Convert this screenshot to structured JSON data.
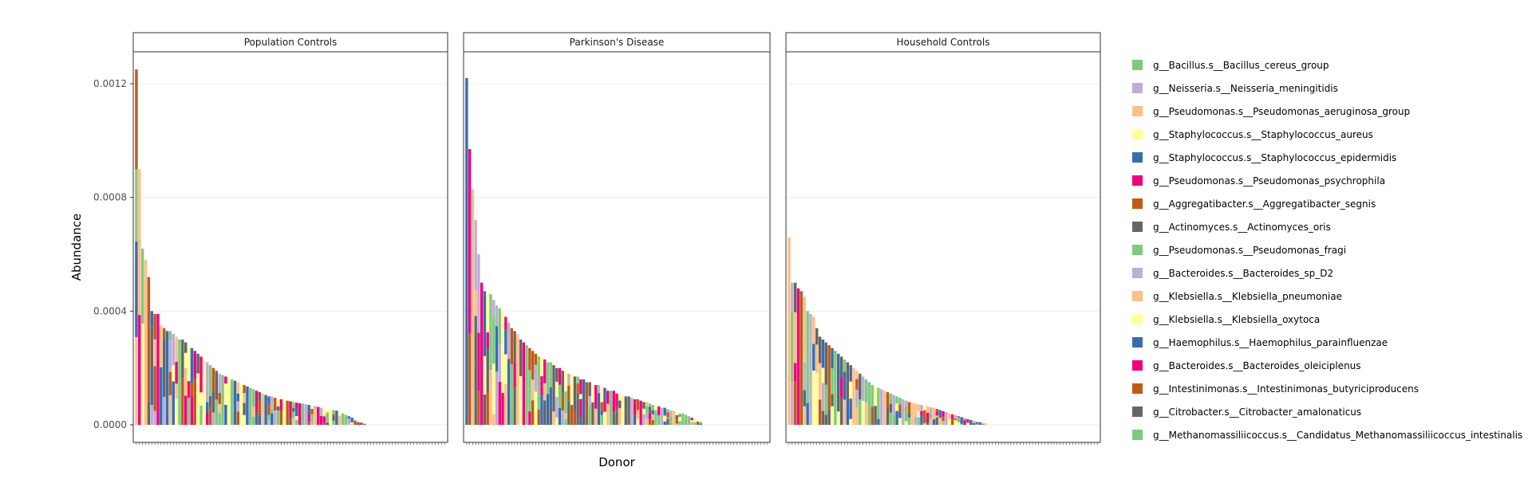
{
  "chart_data": {
    "type": "bar",
    "stacked": true,
    "xlabel": "Donor",
    "ylabel": "Abundance",
    "ylim": [
      0,
      0.0013
    ],
    "yticks": [
      {
        "value": 0,
        "label": "0.0000"
      },
      {
        "value": 0.0004,
        "label": "0.0004"
      },
      {
        "value": 0.0008,
        "label": "0.0008"
      },
      {
        "value": 0.0012,
        "label": "0.0012"
      }
    ],
    "grid": true,
    "legend_position": "right",
    "series": [
      {
        "name": "g__Bacillus.s__Bacillus_cereus_group",
        "color": "#7FC97F"
      },
      {
        "name": "g__Neisseria.s__Neisseria_meningitidis",
        "color": "#BEAED4"
      },
      {
        "name": "g__Pseudomonas.s__Pseudomonas_aeruginosa_group",
        "color": "#FDC086"
      },
      {
        "name": "g__Staphylococcus.s__Staphylococcus_aureus",
        "color": "#FFFF99"
      },
      {
        "name": "g__Staphylococcus.s__Staphylococcus_epidermidis",
        "color": "#386CB0"
      },
      {
        "name": "g__Pseudomonas.s__Pseudomonas_psychrophila",
        "color": "#F0027F"
      },
      {
        "name": "g__Aggregatibacter.s__Aggregatibacter_segnis",
        "color": "#BF5B17"
      },
      {
        "name": "g__Actinomyces.s__Actinomyces_oris",
        "color": "#666666"
      },
      {
        "name": "g__Pseudomonas.s__Pseudomonas_fragi",
        "color": "#7FC97F"
      },
      {
        "name": "g__Bacteroides.s__Bacteroides_sp_D2",
        "color": "#BEAED4"
      },
      {
        "name": "g__Klebsiella.s__Klebsiella_pneumoniae",
        "color": "#FDC086"
      },
      {
        "name": "g__Klebsiella.s__Klebsiella_oxytoca",
        "color": "#FFFF99"
      },
      {
        "name": "g__Haemophilus.s__Haemophilus_parainfluenzae",
        "color": "#386CB0"
      },
      {
        "name": "g__Bacteroides.s__Bacteroides_oleiciplenus",
        "color": "#F0027F"
      },
      {
        "name": "g__Intestinimonas.s__Intestinimonas_butyriciproducens",
        "color": "#BF5B17"
      },
      {
        "name": "g__Citrobacter.s__Citrobacter_amalonaticus",
        "color": "#666666"
      },
      {
        "name": "g__Methanomassiliicoccus.s__Candidatus_Methanomassiliicoccus_intestinalis",
        "color": "#7FC97F"
      }
    ],
    "panels": [
      {
        "title": "Population Controls",
        "totals": [
          0.00125,
          0.0009,
          0.00062,
          0.00058,
          0.00052,
          0.0004,
          0.00039,
          0.00039,
          0.00035,
          0.00034,
          0.00033,
          0.00033,
          0.00032,
          0.00031,
          0.0003,
          0.0003,
          0.00029,
          0.00028,
          0.00027,
          0.00026,
          0.00025,
          0.00024,
          0.00023,
          0.00022,
          0.00021,
          0.0002,
          0.00019,
          0.00018,
          0.000175,
          0.00017,
          0.000165,
          0.00016,
          0.000155,
          0.00015,
          0.000145,
          0.00014,
          0.000135,
          0.00013,
          0.000125,
          0.00012,
          0.000115,
          0.00011,
          0.000105,
          0.0001,
          0.0001,
          9.5e-05,
          9.3e-05,
          9e-05,
          8.8e-05,
          8.5e-05,
          8.3e-05,
          8e-05,
          7.8e-05,
          7.6e-05,
          7.5e-05,
          7.3e-05,
          7e-05,
          6.8e-05,
          6.6e-05,
          6.3e-05,
          6e-05,
          5.8e-05,
          5.6e-05,
          5.4e-05,
          5.2e-05,
          5e-05,
          4.5e-05,
          4e-05,
          3.5e-05,
          3e-05,
          2.5e-05,
          1.5e-05,
          1e-05,
          8e-06,
          4e-06
        ],
        "n_donors": 101
      },
      {
        "title": "Parkinson's Disease",
        "totals": [
          0.00122,
          0.00097,
          0.00083,
          0.00072,
          0.0006,
          0.0005,
          0.00047,
          0.00046,
          0.00046,
          0.00044,
          0.00042,
          0.00041,
          0.0004,
          0.00038,
          0.00036,
          0.00034,
          0.00033,
          0.00032,
          0.0003,
          0.00029,
          0.00028,
          0.00027,
          0.00026,
          0.00025,
          0.00024,
          0.00024,
          0.00023,
          0.00022,
          0.00022,
          0.00021,
          0.0002,
          0.0002,
          0.00019,
          0.00019,
          0.00018,
          0.00018,
          0.00017,
          0.00017,
          0.00016,
          0.00016,
          0.00015,
          0.00015,
          0.00014,
          0.00014,
          0.00014,
          0.00013,
          0.00013,
          0.00012,
          0.00012,
          0.00012,
          0.00011,
          0.00011,
          0.0001,
          0.0001,
          0.0001,
          9.5e-05,
          9e-05,
          9e-05,
          8.5e-05,
          8e-05,
          8e-05,
          7.5e-05,
          7e-05,
          7e-05,
          6.5e-05,
          6e-05,
          6e-05,
          5.5e-05,
          5e-05,
          5e-05,
          4.5e-05,
          4e-05,
          4e-05,
          3.5e-05,
          3e-05,
          2.5e-05,
          2e-05,
          1.5e-05,
          1e-05
        ],
        "n_donors": 101
      },
      {
        "title": "Household Controls",
        "totals": [
          0.00066,
          0.0005,
          0.0005,
          0.00048,
          0.00047,
          0.00045,
          0.0004,
          0.00039,
          0.00038,
          0.00034,
          0.00031,
          0.0003,
          0.00029,
          0.00028,
          0.00027,
          0.00026,
          0.00025,
          0.00024,
          0.00023,
          0.00022,
          0.00021,
          0.0002,
          0.00019,
          0.00018,
          0.00017,
          0.00016,
          0.00015,
          0.00014,
          0.000135,
          0.00013,
          0.000125,
          0.00012,
          0.000115,
          0.00011,
          0.000105,
          0.0001,
          9.5e-05,
          9e-05,
          8.5e-05,
          8e-05,
          7.8e-05,
          7.5e-05,
          7.2e-05,
          7e-05,
          6.8e-05,
          6.5e-05,
          6.2e-05,
          6e-05,
          5.6e-05,
          5.2e-05,
          4.8e-05,
          4.5e-05,
          4e-05,
          3.7e-05,
          3.4e-05,
          3e-05,
          2.7e-05,
          2.4e-05,
          2e-05,
          1.7e-05,
          1.4e-05,
          1.1e-05,
          9e-06,
          7e-06,
          5e-06
        ],
        "n_donors": 101
      }
    ]
  }
}
